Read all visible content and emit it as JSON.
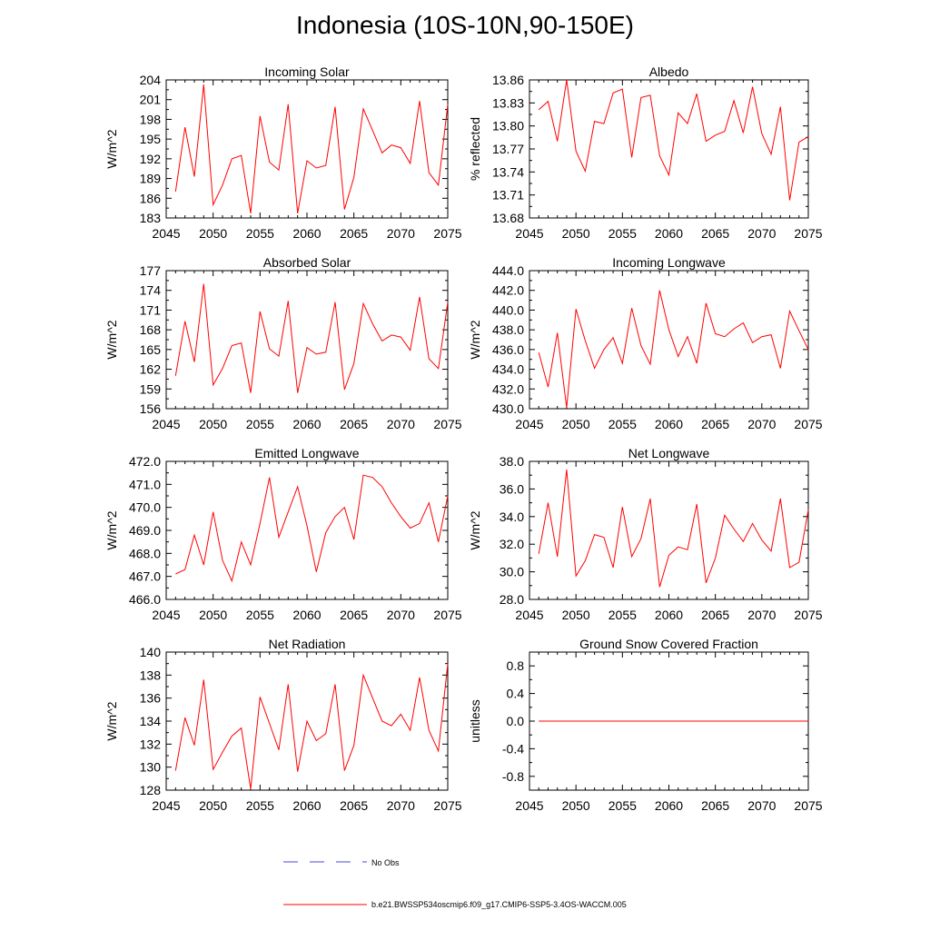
{
  "figure_title": "Indonesia (10S-10N,90-150E)",
  "colors": {
    "model": "#ff0000",
    "obs": "#4a4ad8",
    "axis": "#000000"
  },
  "legend": {
    "obs_label": "No Obs",
    "model_label": "b.e21.BWSSP534oscmip6.f09_g17.CMIP6-SSP5-3.4OS-WACCM.005"
  },
  "chart_data": [
    {
      "type": "line",
      "title": "Incoming Solar",
      "ylabel": "W/m^2",
      "xlim": [
        2045,
        2075
      ],
      "ylim": [
        183,
        204
      ],
      "xticks": [
        2045,
        2050,
        2055,
        2060,
        2065,
        2070,
        2075
      ],
      "xtick_labels": [
        "2045",
        "2050",
        "2055",
        "2060",
        "2065",
        "2070",
        "2075"
      ],
      "yticks": [
        183,
        186,
        189,
        192,
        195,
        198,
        201,
        204
      ],
      "ytick_labels": [
        "183",
        "186",
        "189",
        "192",
        "195",
        "198",
        "201",
        "204"
      ],
      "x": [
        2046,
        2047,
        2048,
        2049,
        2050,
        2051,
        2052,
        2053,
        2054,
        2055,
        2056,
        2057,
        2058,
        2059,
        2060,
        2061,
        2062,
        2063,
        2064,
        2065,
        2066,
        2067,
        2068,
        2069,
        2070,
        2071,
        2072,
        2073,
        2074,
        2075
      ],
      "values": [
        187.0,
        196.8,
        189.3,
        203.3,
        185.0,
        188.0,
        192.0,
        192.5,
        183.7,
        198.5,
        191.5,
        190.3,
        200.3,
        183.7,
        191.7,
        190.6,
        191.0,
        199.9,
        184.3,
        189.2,
        199.6,
        196.3,
        192.9,
        194.1,
        193.7,
        191.3,
        200.8,
        189.9,
        188.0,
        200.3
      ]
    },
    {
      "type": "line",
      "title": "Albedo",
      "ylabel": "% reflected",
      "xlim": [
        2045,
        2075
      ],
      "ylim": [
        13.68,
        13.86
      ],
      "xticks": [
        2045,
        2050,
        2055,
        2060,
        2065,
        2070,
        2075
      ],
      "xtick_labels": [
        "2045",
        "2050",
        "2055",
        "2060",
        "2065",
        "2070",
        "2075"
      ],
      "yticks": [
        13.68,
        13.71,
        13.74,
        13.77,
        13.8,
        13.83,
        13.86
      ],
      "ytick_labels": [
        "13.68",
        "13.71",
        "13.74",
        "13.77",
        "13.80",
        "13.83",
        "13.86"
      ],
      "x": [
        2046,
        2047,
        2048,
        2049,
        2050,
        2051,
        2052,
        2053,
        2054,
        2055,
        2056,
        2057,
        2058,
        2059,
        2060,
        2061,
        2062,
        2063,
        2064,
        2065,
        2066,
        2067,
        2068,
        2069,
        2070,
        2071,
        2072,
        2073,
        2074,
        2075
      ],
      "values": [
        13.821,
        13.832,
        13.78,
        13.86,
        13.767,
        13.741,
        13.806,
        13.803,
        13.843,
        13.848,
        13.759,
        13.837,
        13.84,
        13.761,
        13.736,
        13.817,
        13.803,
        13.842,
        13.78,
        13.788,
        13.793,
        13.833,
        13.791,
        13.851,
        13.79,
        13.763,
        13.825,
        13.703,
        13.779,
        13.786
      ]
    },
    {
      "type": "line",
      "title": "Absorbed Solar",
      "ylabel": "W/m^2",
      "xlim": [
        2045,
        2075
      ],
      "ylim": [
        156,
        177
      ],
      "xticks": [
        2045,
        2050,
        2055,
        2060,
        2065,
        2070,
        2075
      ],
      "xtick_labels": [
        "2045",
        "2050",
        "2055",
        "2060",
        "2065",
        "2070",
        "2075"
      ],
      "yticks": [
        156,
        159,
        162,
        165,
        168,
        171,
        174,
        177
      ],
      "ytick_labels": [
        "156",
        "159",
        "162",
        "165",
        "168",
        "171",
        "174",
        "177"
      ],
      "x": [
        2046,
        2047,
        2048,
        2049,
        2050,
        2051,
        2052,
        2053,
        2054,
        2055,
        2056,
        2057,
        2058,
        2059,
        2060,
        2061,
        2062,
        2063,
        2064,
        2065,
        2066,
        2067,
        2068,
        2069,
        2070,
        2071,
        2072,
        2073,
        2074,
        2075
      ],
      "values": [
        161.0,
        169.3,
        163.1,
        175.0,
        159.6,
        162.1,
        165.6,
        166.0,
        158.4,
        170.8,
        165.1,
        164.0,
        172.4,
        158.4,
        165.3,
        164.3,
        164.6,
        172.2,
        158.9,
        162.9,
        172.0,
        168.9,
        166.3,
        167.2,
        166.9,
        164.9,
        173.0,
        163.6,
        162.1,
        172.2
      ]
    },
    {
      "type": "line",
      "title": "Incoming Longwave",
      "ylabel": "W/m^2",
      "xlim": [
        2045,
        2075
      ],
      "ylim": [
        430.0,
        444.0
      ],
      "xticks": [
        2045,
        2050,
        2055,
        2060,
        2065,
        2070,
        2075
      ],
      "xtick_labels": [
        "2045",
        "2050",
        "2055",
        "2060",
        "2065",
        "2070",
        "2075"
      ],
      "yticks": [
        430.0,
        432.0,
        434.0,
        436.0,
        438.0,
        440.0,
        442.0,
        444.0
      ],
      "ytick_labels": [
        "430.0",
        "432.0",
        "434.0",
        "436.0",
        "438.0",
        "440.0",
        "442.0",
        "444.0"
      ],
      "x": [
        2046,
        2047,
        2048,
        2049,
        2050,
        2051,
        2052,
        2053,
        2054,
        2055,
        2056,
        2057,
        2058,
        2059,
        2060,
        2061,
        2062,
        2063,
        2064,
        2065,
        2066,
        2067,
        2068,
        2069,
        2070,
        2071,
        2072,
        2073,
        2074,
        2075
      ],
      "values": [
        435.7,
        432.2,
        437.7,
        430.1,
        440.1,
        436.9,
        434.1,
        436.0,
        437.2,
        434.6,
        440.2,
        436.4,
        434.5,
        442.0,
        438.0,
        435.3,
        437.3,
        434.6,
        440.7,
        437.6,
        437.3,
        438.1,
        438.7,
        436.7,
        437.3,
        437.5,
        434.1,
        439.9,
        437.9,
        436.0
      ]
    },
    {
      "type": "line",
      "title": "Emitted Longwave",
      "ylabel": "W/m^2",
      "xlim": [
        2045,
        2075
      ],
      "ylim": [
        466.0,
        472.0
      ],
      "xticks": [
        2045,
        2050,
        2055,
        2060,
        2065,
        2070,
        2075
      ],
      "xtick_labels": [
        "2045",
        "2050",
        "2055",
        "2060",
        "2065",
        "2070",
        "2075"
      ],
      "yticks": [
        466.0,
        467.0,
        468.0,
        469.0,
        470.0,
        471.0,
        472.0
      ],
      "ytick_labels": [
        "466.0",
        "467.0",
        "468.0",
        "469.0",
        "470.0",
        "471.0",
        "472.0"
      ],
      "x": [
        2046,
        2047,
        2048,
        2049,
        2050,
        2051,
        2052,
        2053,
        2054,
        2055,
        2056,
        2057,
        2058,
        2059,
        2060,
        2061,
        2062,
        2063,
        2064,
        2065,
        2066,
        2067,
        2068,
        2069,
        2070,
        2071,
        2072,
        2073,
        2074,
        2075
      ],
      "values": [
        467.1,
        467.3,
        468.8,
        467.5,
        469.8,
        467.7,
        466.8,
        468.5,
        467.5,
        469.3,
        471.3,
        468.7,
        469.8,
        470.9,
        469.2,
        467.2,
        468.9,
        469.6,
        470.0,
        468.6,
        471.4,
        471.3,
        470.9,
        470.2,
        469.6,
        469.1,
        469.3,
        470.2,
        468.5,
        470.5
      ]
    },
    {
      "type": "line",
      "title": "Net Longwave",
      "ylabel": "W/m^2",
      "xlim": [
        2045,
        2075
      ],
      "ylim": [
        28.0,
        38.0
      ],
      "xticks": [
        2045,
        2050,
        2055,
        2060,
        2065,
        2070,
        2075
      ],
      "xtick_labels": [
        "2045",
        "2050",
        "2055",
        "2060",
        "2065",
        "2070",
        "2075"
      ],
      "yticks": [
        28.0,
        30.0,
        32.0,
        34.0,
        36.0,
        38.0
      ],
      "ytick_labels": [
        "28.0",
        "30.0",
        "32.0",
        "34.0",
        "36.0",
        "38.0"
      ],
      "x": [
        2046,
        2047,
        2048,
        2049,
        2050,
        2051,
        2052,
        2053,
        2054,
        2055,
        2056,
        2057,
        2058,
        2059,
        2060,
        2061,
        2062,
        2063,
        2064,
        2065,
        2066,
        2067,
        2068,
        2069,
        2070,
        2071,
        2072,
        2073,
        2074,
        2075
      ],
      "values": [
        31.3,
        35.0,
        31.1,
        37.4,
        29.7,
        30.8,
        32.7,
        32.5,
        30.3,
        34.7,
        31.1,
        32.4,
        35.3,
        28.9,
        31.2,
        31.8,
        31.6,
        34.9,
        29.2,
        31.0,
        34.1,
        33.1,
        32.2,
        33.5,
        32.3,
        31.5,
        35.3,
        30.3,
        30.7,
        34.5
      ]
    },
    {
      "type": "line",
      "title": "Net Radiation",
      "ylabel": "W/m^2",
      "xlim": [
        2045,
        2075
      ],
      "ylim": [
        128,
        140
      ],
      "xticks": [
        2045,
        2050,
        2055,
        2060,
        2065,
        2070,
        2075
      ],
      "xtick_labels": [
        "2045",
        "2050",
        "2055",
        "2060",
        "2065",
        "2070",
        "2075"
      ],
      "yticks": [
        128,
        130,
        132,
        134,
        136,
        138,
        140
      ],
      "ytick_labels": [
        "128",
        "130",
        "132",
        "134",
        "136",
        "138",
        "140"
      ],
      "x": [
        2046,
        2047,
        2048,
        2049,
        2050,
        2051,
        2052,
        2053,
        2054,
        2055,
        2056,
        2057,
        2058,
        2059,
        2060,
        2061,
        2062,
        2063,
        2064,
        2065,
        2066,
        2067,
        2068,
        2069,
        2070,
        2071,
        2072,
        2073,
        2074,
        2075
      ],
      "values": [
        129.7,
        134.3,
        131.9,
        137.6,
        129.8,
        131.3,
        132.7,
        133.4,
        128.1,
        136.1,
        133.8,
        131.5,
        137.2,
        129.6,
        134.0,
        132.3,
        132.9,
        137.2,
        129.7,
        131.9,
        138.0,
        136.0,
        134.0,
        133.6,
        134.6,
        133.2,
        137.8,
        133.2,
        131.4,
        139.0
      ]
    },
    {
      "type": "line",
      "title": "Ground Snow Covered Fraction",
      "ylabel": "unitless",
      "xlim": [
        2045,
        2075
      ],
      "ylim": [
        -1.0,
        1.0
      ],
      "xticks": [
        2045,
        2050,
        2055,
        2060,
        2065,
        2070,
        2075
      ],
      "xtick_labels": [
        "2045",
        "2050",
        "2055",
        "2060",
        "2065",
        "2070",
        "2075"
      ],
      "yticks": [
        -0.8,
        -0.4,
        0.0,
        0.4,
        0.8
      ],
      "ytick_labels": [
        "-0.8",
        "-0.4",
        "0.0",
        "0.4",
        "0.8"
      ],
      "x": [
        2046,
        2047,
        2048,
        2049,
        2050,
        2051,
        2052,
        2053,
        2054,
        2055,
        2056,
        2057,
        2058,
        2059,
        2060,
        2061,
        2062,
        2063,
        2064,
        2065,
        2066,
        2067,
        2068,
        2069,
        2070,
        2071,
        2072,
        2073,
        2074,
        2075
      ],
      "values": [
        0,
        0,
        0,
        0,
        0,
        0,
        0,
        0,
        0,
        0,
        0,
        0,
        0,
        0,
        0,
        0,
        0,
        0,
        0,
        0,
        0,
        0,
        0,
        0,
        0,
        0,
        0,
        0,
        0,
        0
      ]
    }
  ]
}
